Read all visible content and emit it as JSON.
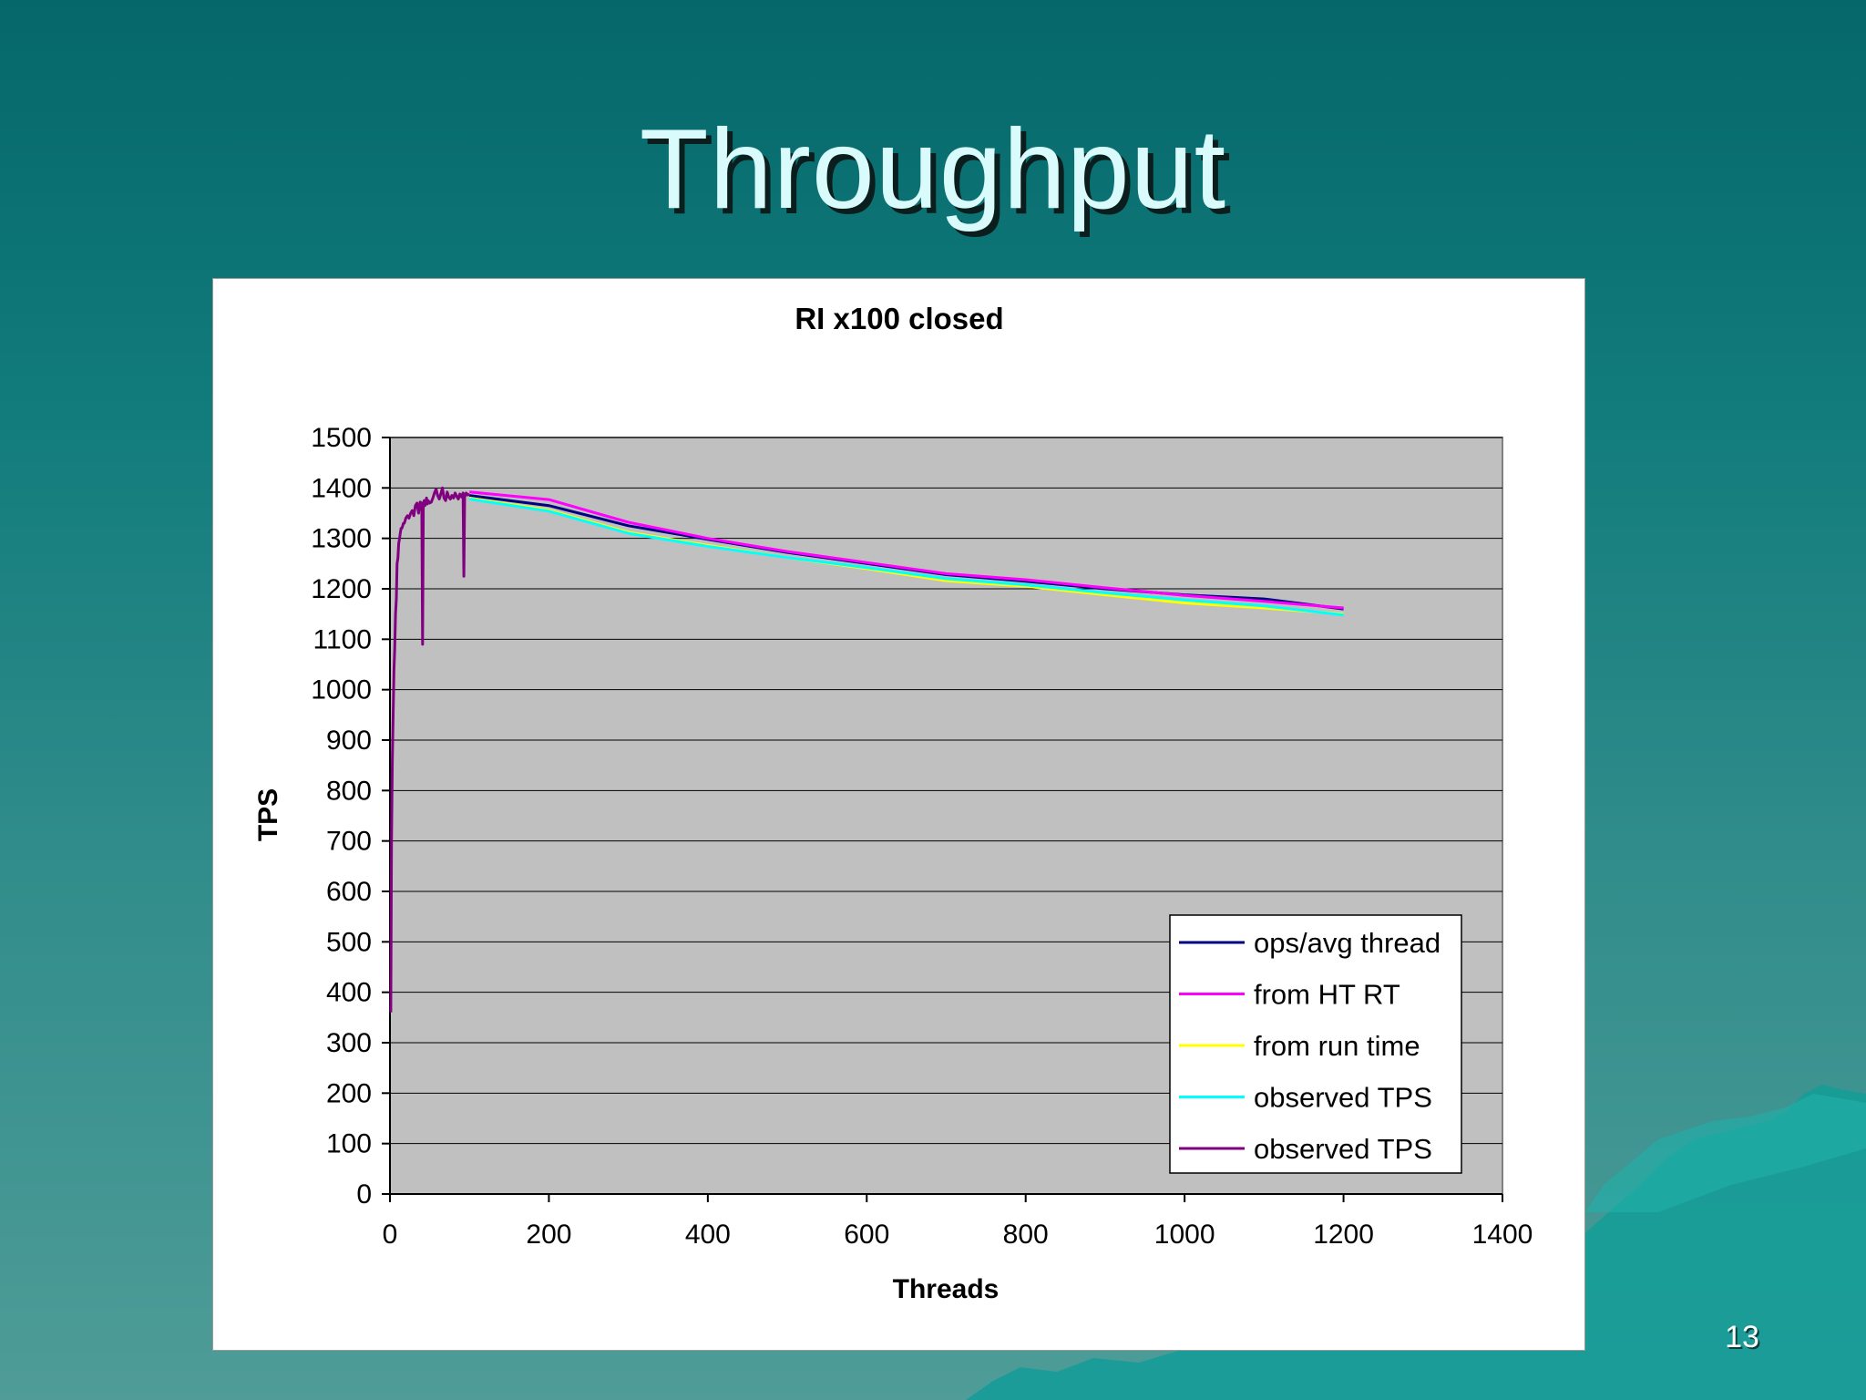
{
  "slide": {
    "title": "Throughput",
    "page_number": "13"
  },
  "chart_data": {
    "type": "line",
    "title": "RI x100 closed",
    "xlabel": "Threads",
    "ylabel": "TPS",
    "xlim": [
      0,
      1400
    ],
    "ylim": [
      0,
      1500
    ],
    "xticks": [
      0,
      200,
      400,
      600,
      800,
      1000,
      1200,
      1400
    ],
    "yticks": [
      0,
      100,
      200,
      300,
      400,
      500,
      600,
      700,
      800,
      900,
      1000,
      1100,
      1200,
      1300,
      1400,
      1500
    ],
    "grid": "horizontal",
    "legend_position": "bottom-right",
    "plot_background": "#c0c0c0",
    "series": [
      {
        "name": "ops/avg thread",
        "color": "#000080",
        "x": [
          100,
          200,
          300,
          400,
          500,
          600,
          700,
          800,
          900,
          1000,
          1100,
          1200
        ],
        "y": [
          1385,
          1365,
          1325,
          1298,
          1272,
          1250,
          1228,
          1215,
          1200,
          1188,
          1180,
          1160
        ]
      },
      {
        "name": "from HT RT",
        "color": "#ff00ff",
        "x": [
          100,
          200,
          300,
          400,
          500,
          600,
          700,
          800,
          900,
          1000,
          1100,
          1200
        ],
        "y": [
          1392,
          1377,
          1332,
          1300,
          1274,
          1252,
          1230,
          1218,
          1202,
          1187,
          1175,
          1162
        ]
      },
      {
        "name": "from run time",
        "color": "#ffff00",
        "x": [
          100,
          200,
          300,
          400,
          500,
          600,
          700,
          800,
          900,
          1000,
          1100,
          1200
        ],
        "y": [
          1380,
          1356,
          1312,
          1286,
          1262,
          1240,
          1216,
          1205,
          1188,
          1172,
          1162,
          1150
        ]
      },
      {
        "name": "observed TPS",
        "color": "#00ffff",
        "x": [
          100,
          200,
          300,
          400,
          500,
          600,
          700,
          800,
          900,
          1000,
          1100,
          1200
        ],
        "y": [
          1378,
          1354,
          1310,
          1284,
          1262,
          1242,
          1220,
          1208,
          1192,
          1178,
          1166,
          1148
        ]
      },
      {
        "name": "observed TPS",
        "color": "#800080",
        "x": [
          1,
          2,
          3,
          4,
          5,
          6,
          7,
          8,
          9,
          10,
          11,
          12,
          13,
          14,
          15,
          16,
          17,
          18,
          19,
          20,
          22,
          24,
          26,
          28,
          30,
          32,
          34,
          36,
          38,
          40,
          41,
          42,
          43,
          44,
          45,
          46,
          47,
          48,
          50,
          52,
          54,
          56,
          58,
          60,
          62,
          64,
          66,
          68,
          70,
          72,
          74,
          76,
          78,
          80,
          82,
          84,
          86,
          88,
          90,
          92,
          93,
          94,
          95,
          96,
          98,
          100
        ],
        "y": [
          360,
          700,
          860,
          950,
          1040,
          1080,
          1150,
          1180,
          1250,
          1260,
          1290,
          1300,
          1310,
          1320,
          1320,
          1325,
          1330,
          1330,
          1335,
          1340,
          1345,
          1340,
          1350,
          1355,
          1345,
          1365,
          1370,
          1350,
          1372,
          1370,
          1090,
          1360,
          1375,
          1365,
          1372,
          1380,
          1368,
          1375,
          1370,
          1372,
          1380,
          1390,
          1398,
          1385,
          1378,
          1388,
          1400,
          1380,
          1375,
          1392,
          1382,
          1378,
          1385,
          1380,
          1390,
          1383,
          1378,
          1388,
          1382,
          1390,
          1225,
          1388,
          1385,
          1390,
          1386,
          1388
        ]
      }
    ]
  }
}
